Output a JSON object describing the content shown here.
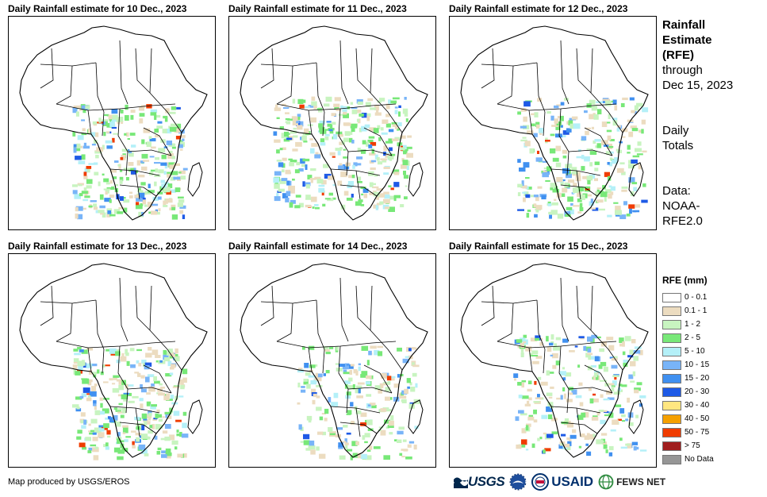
{
  "panels": [
    {
      "title": "Daily Rainfall estimate for 10 Dec., 2023"
    },
    {
      "title": "Daily Rainfall estimate for 11 Dec., 2023"
    },
    {
      "title": "Daily Rainfall estimate for 12 Dec., 2023"
    },
    {
      "title": "Daily Rainfall estimate for 13 Dec., 2023"
    },
    {
      "title": "Daily Rainfall estimate for 14 Dec., 2023"
    },
    {
      "title": "Daily Rainfall estimate for 15 Dec., 2023"
    }
  ],
  "sidebar": {
    "title_line1": "Rainfall",
    "title_line2": "Estimate",
    "title_line3": "(RFE)",
    "through_line1": "through",
    "through_line2": "Dec 15, 2023",
    "totals_line1": "Daily",
    "totals_line2": "Totals",
    "data_line1": "Data:",
    "data_line2": "NOAA-",
    "data_line3": "RFE2.0"
  },
  "legend": {
    "title": "RFE (mm)",
    "items": [
      {
        "label": "0 - 0.1",
        "color": "#ffffff"
      },
      {
        "label": "0.1 - 1",
        "color": "#ecdcc0"
      },
      {
        "label": "1 - 2",
        "color": "#c8f4c0"
      },
      {
        "label": "2 - 5",
        "color": "#78e878"
      },
      {
        "label": "5 - 10",
        "color": "#b4f0f8"
      },
      {
        "label": "10 - 15",
        "color": "#78b4f8"
      },
      {
        "label": "15 - 20",
        "color": "#4090f0"
      },
      {
        "label": "20 - 30",
        "color": "#1e5ae6"
      },
      {
        "label": "30 - 40",
        "color": "#ffe680"
      },
      {
        "label": "40 - 50",
        "color": "#f5a000"
      },
      {
        "label": "50 - 75",
        "color": "#f03c00"
      },
      {
        "label": "> 75",
        "color": "#a01e1e"
      },
      {
        "label": "No Data",
        "color": "#969696"
      }
    ]
  },
  "footer": {
    "credit": "Map produced by USGS/EROS",
    "usgs_logo": "USGS",
    "usaid_logo": "USAID",
    "fews_logo": "FEWS NET"
  }
}
